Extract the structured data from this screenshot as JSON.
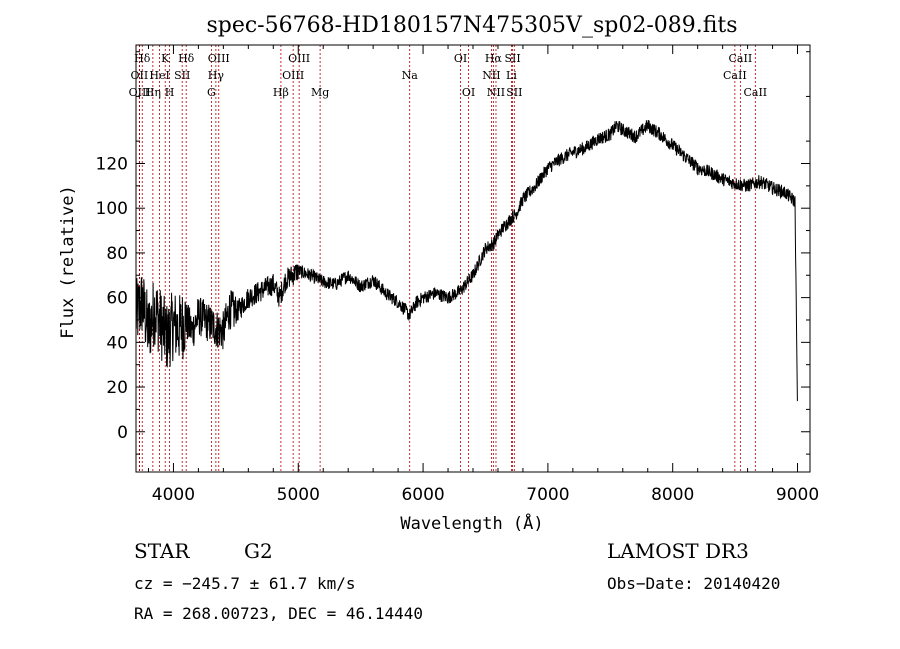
{
  "chart_data": {
    "type": "line",
    "title": "spec-56768-HD180157N475305V_sp02-089.fits",
    "xlabel": "Wavelength (Å)",
    "ylabel": "Flux (relative)",
    "xlim": [
      3700,
      9100
    ],
    "ylim": [
      -18,
      173
    ],
    "xticks": [
      4000,
      5000,
      6000,
      7000,
      8000,
      9000
    ],
    "yticks": [
      0,
      20,
      40,
      60,
      80,
      100,
      120
    ],
    "grid": false,
    "line_color": "#000000",
    "marker_line_color": "#b00000",
    "series": [
      {
        "x": [
          3700,
          3750,
          3800,
          3850,
          3900,
          3950,
          4000,
          4050,
          4100,
          4150,
          4200,
          4250,
          4300,
          4350,
          4400,
          4450,
          4500,
          4600,
          4700,
          4800,
          4850,
          4900,
          5000,
          5100,
          5200,
          5300,
          5400,
          5500,
          5600,
          5700,
          5800,
          5850,
          5890,
          5950,
          6000,
          6100,
          6200,
          6300,
          6400,
          6500,
          6563,
          6600,
          6650,
          6700,
          6750,
          6800,
          6900,
          7000,
          7100,
          7200,
          7300,
          7400,
          7500,
          7550,
          7600,
          7700,
          7800,
          7900,
          8000,
          8100,
          8200,
          8300,
          8400,
          8500,
          8600,
          8700,
          8800,
          8900,
          8980,
          9000
        ],
        "y": [
          52,
          58,
          45,
          55,
          48,
          42,
          48,
          46,
          50,
          45,
          52,
          50,
          48,
          46,
          45,
          55,
          53,
          60,
          63,
          66,
          60,
          68,
          72,
          70,
          67,
          66,
          70,
          65,
          68,
          62,
          58,
          55,
          52,
          58,
          60,
          62,
          60,
          63,
          70,
          82,
          84,
          88,
          92,
          95,
          98,
          104,
          110,
          118,
          122,
          125,
          127,
          131,
          133,
          137,
          135,
          132,
          137,
          133,
          128,
          123,
          118,
          116,
          113,
          111,
          110,
          112,
          109,
          107,
          103,
          10
        ]
      }
    ],
    "line_markers": [
      {
        "label": "Hδ",
        "x": 3750,
        "row": 1
      },
      {
        "label": "OII",
        "x": 3727,
        "row": 2
      },
      {
        "label": "OIII",
        "x": 3729,
        "row": 3
      },
      {
        "label": "K",
        "x": 3934,
        "row": 1
      },
      {
        "label": "HeI",
        "x": 3889,
        "row": 2
      },
      {
        "label": "Hη",
        "x": 3835,
        "row": 3
      },
      {
        "label": "SII",
        "x": 4070,
        "row": 2
      },
      {
        "label": "H",
        "x": 3969,
        "row": 3
      },
      {
        "label": "Hδ",
        "x": 4102,
        "row": 1
      },
      {
        "label": "OIII",
        "x": 4363,
        "row": 1
      },
      {
        "label": "Hγ",
        "x": 4340,
        "row": 2
      },
      {
        "label": "G",
        "x": 4304,
        "row": 3
      },
      {
        "label": "OIII",
        "x": 5007,
        "row": 1
      },
      {
        "label": "OIII",
        "x": 4959,
        "row": 2
      },
      {
        "label": "Hβ",
        "x": 4861,
        "row": 3
      },
      {
        "label": "Mg",
        "x": 5175,
        "row": 3
      },
      {
        "label": "Na",
        "x": 5893,
        "row": 2
      },
      {
        "label": "OI",
        "x": 6300,
        "row": 1
      },
      {
        "label": "OI",
        "x": 6364,
        "row": 3
      },
      {
        "label": "Hα",
        "x": 6563,
        "row": 1
      },
      {
        "label": "NII",
        "x": 6548,
        "row": 2
      },
      {
        "label": "NII",
        "x": 6584,
        "row": 3
      },
      {
        "label": "SII",
        "x": 6717,
        "row": 1
      },
      {
        "label": "Li",
        "x": 6708,
        "row": 2
      },
      {
        "label": "SII",
        "x": 6731,
        "row": 3
      },
      {
        "label": "CaII",
        "x": 8542,
        "row": 1
      },
      {
        "label": "CaII",
        "x": 8498,
        "row": 2
      },
      {
        "label": "CaII",
        "x": 8662,
        "row": 3
      }
    ]
  },
  "footer": {
    "object_class": "STAR",
    "subclass": "G2",
    "survey": "LAMOST DR3",
    "redshift": "cz = −245.7 ± 61.7 km/s",
    "obs_date": "Obs−Date: 20140420",
    "coords": "RA = 268.00723, DEC =  46.14440"
  }
}
